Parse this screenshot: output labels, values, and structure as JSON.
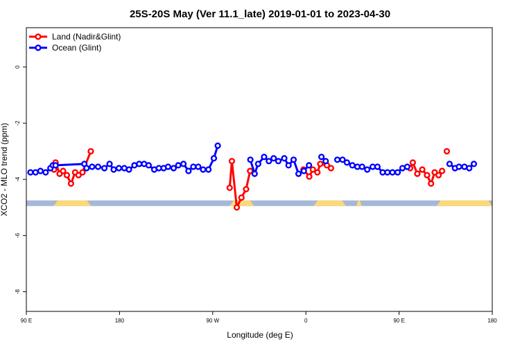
{
  "chart_data": {
    "type": "line",
    "title": "25S-20S May (Ver 11.1_late)   2019-01-01 to 2023-04-30",
    "xlabel": "Longitude (deg E)",
    "ylabel": "XCO2 - MLO trend (ppm)",
    "xlim": [
      90,
      450
    ],
    "ylim": [
      -8.7,
      1.4
    ],
    "yticks": [
      0,
      -2,
      -4,
      -6,
      -8
    ],
    "yticklabels": [
      "0",
      "-2",
      "-4",
      "-6",
      "-8"
    ],
    "xticks": [
      90,
      162,
      234,
      306,
      378,
      450
    ],
    "xticklabels": [
      "90 E",
      "180",
      "90 W",
      "0",
      "90 E",
      "180"
    ],
    "legend": {
      "position": "top-left"
    },
    "colors": {
      "land": "#ff0000",
      "ocean": "#0000ff",
      "sea_band": "#a5b8d8",
      "land_band": "#fcd978"
    },
    "land_mask_band": {
      "y_range": [
        -4.95,
        -4.75
      ]
    },
    "land_segments": [
      [
        111,
        140
      ],
      [
        247,
        266
      ],
      [
        312,
        337
      ],
      [
        345,
        349
      ],
      [
        407,
        459
      ]
    ],
    "series": [
      {
        "name": "Land (Nadir&Glint)",
        "color": "#ff0000",
        "segments": [
          [
            [
              111.4,
              -3.65
            ],
            [
              112.6,
              -3.4
            ],
            [
              115.7,
              -3.8
            ],
            [
              118.4,
              -3.7
            ],
            [
              121.3,
              -3.85
            ],
            [
              124.5,
              -4.15
            ],
            [
              127.7,
              -3.75
            ],
            [
              130.3,
              -3.85
            ],
            [
              133.4,
              -3.75
            ],
            [
              139.8,
              -3.0
            ]
          ],
          [
            [
              247.1,
              -4.3
            ],
            [
              248.8,
              -3.35
            ],
            [
              252.6,
              -5.0
            ],
            [
              256.2,
              -4.65
            ],
            [
              259.8,
              -4.35
            ],
            [
              262.9,
              -3.7
            ]
          ],
          [
            [
              304.1,
              -3.65
            ],
            [
              308.6,
              -3.9
            ],
            [
              311.4,
              -3.65
            ],
            [
              314.9,
              -3.75
            ],
            [
              317.1,
              -3.45
            ],
            [
              322.2,
              -3.5
            ],
            [
              325.4,
              -3.6
            ]
          ],
          [
            [
              386.5,
              -3.6
            ],
            [
              388.6,
              -3.4
            ],
            [
              392.1,
              -3.8
            ],
            [
              395.9,
              -3.65
            ],
            [
              399.6,
              -3.85
            ],
            [
              402.7,
              -4.15
            ],
            [
              405.5,
              -3.75
            ],
            [
              408.5,
              -3.85
            ],
            [
              411.2,
              -3.7
            ]
          ],
          [
            [
              414.9,
              -3.0
            ]
          ]
        ]
      },
      {
        "name": "Ocean (Glint)",
        "color": "#0000ff",
        "segments": [
          [
            [
              93.2,
              -3.75
            ],
            [
              97.1,
              -3.75
            ],
            [
              100.9,
              -3.7
            ],
            [
              104.9,
              -3.75
            ],
            [
              108.6,
              -3.6
            ],
            [
              110.5,
              -3.5
            ],
            [
              112.6,
              -3.5
            ],
            [
              134.8,
              -3.45
            ],
            [
              136.5,
              -3.6
            ]
          ],
          [
            [
              140.8,
              -3.55
            ],
            [
              145.4,
              -3.55
            ],
            [
              150.3,
              -3.6
            ],
            [
              154.3,
              -3.45
            ],
            [
              157.5,
              -3.65
            ],
            [
              161.5,
              -3.6
            ],
            [
              165.7,
              -3.6
            ],
            [
              169.3,
              -3.65
            ],
            [
              173.5,
              -3.5
            ],
            [
              177.2,
              -3.45
            ],
            [
              181.0,
              -3.45
            ],
            [
              184.5,
              -3.5
            ],
            [
              188.8,
              -3.65
            ],
            [
              192.4,
              -3.6
            ],
            [
              196.1,
              -3.6
            ],
            [
              199.5,
              -3.55
            ],
            [
              203.8,
              -3.6
            ],
            [
              207.4,
              -3.5
            ],
            [
              211.4,
              -3.45
            ],
            [
              215.3,
              -3.7
            ],
            [
              219.0,
              -3.55
            ],
            [
              222.8,
              -3.55
            ],
            [
              226.6,
              -3.65
            ],
            [
              230.7,
              -3.65
            ],
            [
              234.9,
              -3.25
            ],
            [
              237.9,
              -2.8
            ]
          ],
          [
            [
              263.1,
              -3.3
            ],
            [
              266.4,
              -3.8
            ],
            [
              269.1,
              -3.45
            ],
            [
              273.7,
              -3.2
            ],
            [
              277.4,
              -3.35
            ],
            [
              281.1,
              -3.25
            ],
            [
              284.7,
              -3.35
            ],
            [
              289.3,
              -3.25
            ],
            [
              292.6,
              -3.5
            ],
            [
              296.5,
              -3.3
            ],
            [
              300.3,
              -3.8
            ],
            [
              304.4,
              -3.7
            ],
            [
              308.4,
              -3.5
            ]
          ],
          [
            [
              318.0,
              -3.2
            ],
            [
              321.3,
              -3.35
            ]
          ],
          [
            [
              330.3,
              -3.3
            ],
            [
              334.3,
              -3.3
            ],
            [
              337.7,
              -3.4
            ],
            [
              341.9,
              -3.5
            ],
            [
              345.8,
              -3.55
            ],
            [
              349.4,
              -3.55
            ],
            [
              353.4,
              -3.65
            ],
            [
              357.6,
              -3.55
            ],
            [
              361.3,
              -3.55
            ],
            [
              365.3,
              -3.75
            ],
            [
              369.0,
              -3.75
            ],
            [
              372.9,
              -3.75
            ],
            [
              376.9,
              -3.75
            ],
            [
              380.6,
              -3.6
            ],
            [
              384.3,
              -3.55
            ]
          ],
          [
            [
              417.0,
              -3.45
            ],
            [
              421.2,
              -3.6
            ],
            [
              424.3,
              -3.55
            ],
            [
              428.5,
              -3.55
            ],
            [
              432.2,
              -3.6
            ],
            [
              435.8,
              -3.45
            ]
          ]
        ]
      }
    ]
  }
}
